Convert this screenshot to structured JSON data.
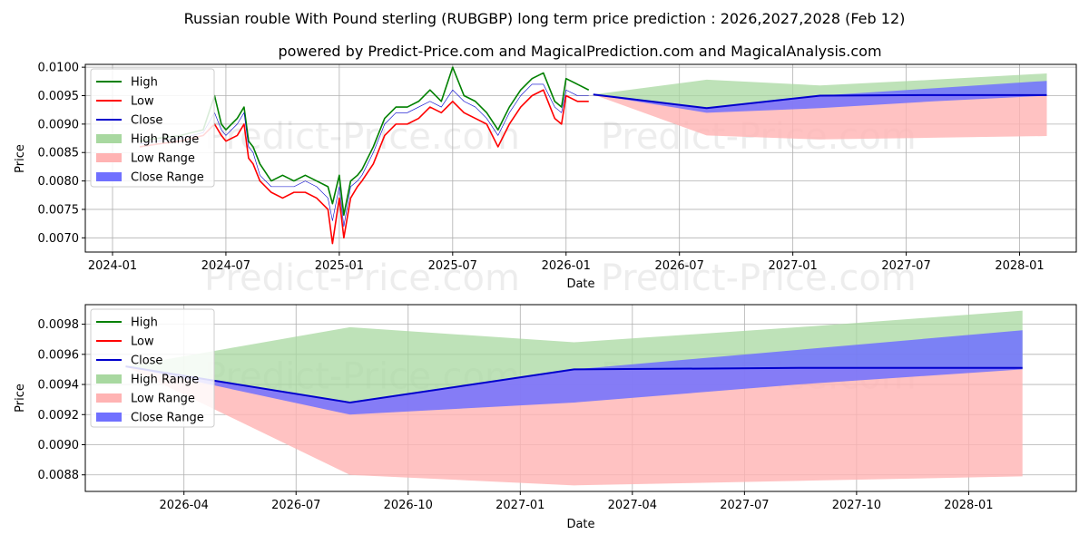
{
  "title": "Russian rouble With Pound sterling (RUBGBP) long term price prediction : 2026,2027,2028 (Feb 12)",
  "subtitle": "powered by Predict-Price.com and MagicalPrediction.com and MagicalAnalysis.com",
  "watermark": "Predict-Price.com",
  "colors": {
    "high": "#008000",
    "low": "#ff0000",
    "close": "#0000cc",
    "high_range": "#a8d8a0",
    "low_range": "#ffb3b3",
    "close_range": "#7070ff",
    "grid": "#b0b0b0"
  },
  "legend": [
    "High",
    "Low",
    "Close",
    "High Range",
    "Low Range",
    "Close Range"
  ],
  "chart_data": [
    {
      "type": "line",
      "name": "full-history",
      "xlabel": "Date",
      "ylabel": "Price",
      "xlim": [
        2023.88,
        2028.25
      ],
      "ylim": [
        0.00675,
        0.01005
      ],
      "x_ticks": [
        {
          "label": "2024-01",
          "x": 2024.0
        },
        {
          "label": "2024-07",
          "x": 2024.5
        },
        {
          "label": "2025-01",
          "x": 2025.0
        },
        {
          "label": "2025-07",
          "x": 2025.5
        },
        {
          "label": "2026-01",
          "x": 2026.0
        },
        {
          "label": "2026-07",
          "x": 2026.5
        },
        {
          "label": "2027-01",
          "x": 2027.0
        },
        {
          "label": "2027-07",
          "x": 2027.5
        },
        {
          "label": "2028-01",
          "x": 2028.0
        }
      ],
      "y_ticks": [
        {
          "label": "0.0070",
          "y": 0.007
        },
        {
          "label": "0.0075",
          "y": 0.0075
        },
        {
          "label": "0.0080",
          "y": 0.008
        },
        {
          "label": "0.0085",
          "y": 0.0085
        },
        {
          "label": "0.0090",
          "y": 0.009
        },
        {
          "label": "0.0095",
          "y": 0.0095
        },
        {
          "label": "0.0100",
          "y": 0.01
        }
      ],
      "history": {
        "x": [
          2024.12,
          2024.2,
          2024.3,
          2024.4,
          2024.45,
          2024.48,
          2024.5,
          2024.55,
          2024.58,
          2024.6,
          2024.62,
          2024.65,
          2024.7,
          2024.75,
          2024.8,
          2024.85,
          2024.9,
          2024.95,
          2024.97,
          2025.0,
          2025.02,
          2025.05,
          2025.08,
          2025.1,
          2025.15,
          2025.2,
          2025.25,
          2025.3,
          2025.35,
          2025.4,
          2025.45,
          2025.5,
          2025.55,
          2025.6,
          2025.65,
          2025.7,
          2025.75,
          2025.8,
          2025.85,
          2025.9,
          2025.95,
          2025.98,
          2026.0,
          2026.05,
          2026.1
        ],
        "high": [
          0.0087,
          0.00875,
          0.0088,
          0.0089,
          0.0095,
          0.009,
          0.0089,
          0.0091,
          0.0093,
          0.0087,
          0.0086,
          0.0083,
          0.008,
          0.0081,
          0.008,
          0.0081,
          0.008,
          0.0079,
          0.0076,
          0.0081,
          0.0074,
          0.008,
          0.0081,
          0.0082,
          0.0086,
          0.0091,
          0.0093,
          0.0093,
          0.0094,
          0.0096,
          0.0094,
          0.01,
          0.0095,
          0.0094,
          0.0092,
          0.0089,
          0.0093,
          0.0096,
          0.0098,
          0.0099,
          0.0094,
          0.0093,
          0.0098,
          0.0097,
          0.0096
        ],
        "low": [
          0.0086,
          0.00865,
          0.0087,
          0.0088,
          0.009,
          0.0088,
          0.0087,
          0.0088,
          0.009,
          0.0084,
          0.0083,
          0.008,
          0.0078,
          0.0077,
          0.0078,
          0.0078,
          0.0077,
          0.0075,
          0.0069,
          0.0077,
          0.007,
          0.0077,
          0.0079,
          0.008,
          0.0083,
          0.0088,
          0.009,
          0.009,
          0.0091,
          0.0093,
          0.0092,
          0.0094,
          0.0092,
          0.0091,
          0.009,
          0.0086,
          0.009,
          0.0093,
          0.0095,
          0.0096,
          0.0091,
          0.009,
          0.0095,
          0.0094,
          0.0094
        ],
        "close": [
          0.00865,
          0.0087,
          0.00875,
          0.00885,
          0.0092,
          0.0089,
          0.0088,
          0.009,
          0.0092,
          0.0086,
          0.0085,
          0.0081,
          0.0079,
          0.0079,
          0.0079,
          0.008,
          0.0079,
          0.0077,
          0.0073,
          0.0079,
          0.0072,
          0.0079,
          0.008,
          0.0081,
          0.0085,
          0.009,
          0.0092,
          0.0092,
          0.0093,
          0.0094,
          0.0093,
          0.0096,
          0.0094,
          0.0093,
          0.0091,
          0.0088,
          0.0092,
          0.0095,
          0.0097,
          0.0097,
          0.0093,
          0.0092,
          0.0096,
          0.0095,
          0.0095
        ]
      },
      "forecast": {
        "x": [
          2026.12,
          2026.62,
          2027.12,
          2027.62,
          2028.12
        ],
        "close": [
          0.00952,
          0.00928,
          0.0095,
          0.00951,
          0.00951
        ],
        "high_range_top": [
          0.00952,
          0.00978,
          0.00968,
          0.00978,
          0.00989
        ],
        "close_range_top": [
          0.00952,
          0.00928,
          0.0095,
          0.00963,
          0.00976
        ],
        "close_range_bottom": [
          0.00952,
          0.0092,
          0.00928,
          0.0094,
          0.0095
        ],
        "low_range_bottom": [
          0.00952,
          0.0088,
          0.00873,
          0.00876,
          0.00879
        ]
      }
    },
    {
      "type": "line",
      "name": "forecast-zoom",
      "xlabel": "Date",
      "ylabel": "Price",
      "xlim": [
        2026.03,
        2028.24
      ],
      "ylim": [
        0.00869,
        0.00993
      ],
      "x_ticks": [
        {
          "label": "2026-04",
          "x": 2026.25
        },
        {
          "label": "2026-07",
          "x": 2026.5
        },
        {
          "label": "2026-10",
          "x": 2026.75
        },
        {
          "label": "2027-01",
          "x": 2027.0
        },
        {
          "label": "2027-04",
          "x": 2027.25
        },
        {
          "label": "2027-07",
          "x": 2027.5
        },
        {
          "label": "2027-10",
          "x": 2027.75
        },
        {
          "label": "2028-01",
          "x": 2028.0
        }
      ],
      "y_ticks": [
        {
          "label": "0.0088",
          "y": 0.0088
        },
        {
          "label": "0.0090",
          "y": 0.009
        },
        {
          "label": "0.0092",
          "y": 0.0092
        },
        {
          "label": "0.0094",
          "y": 0.0094
        },
        {
          "label": "0.0096",
          "y": 0.0096
        },
        {
          "label": "0.0098",
          "y": 0.0098
        }
      ],
      "forecast": {
        "x": [
          2026.12,
          2026.62,
          2027.12,
          2027.62,
          2028.12
        ],
        "close": [
          0.00952,
          0.00928,
          0.0095,
          0.00951,
          0.00951
        ],
        "high_range_top": [
          0.00952,
          0.00978,
          0.00968,
          0.00978,
          0.00989
        ],
        "close_range_top": [
          0.00952,
          0.00928,
          0.0095,
          0.00963,
          0.00976
        ],
        "close_range_bottom": [
          0.00952,
          0.0092,
          0.00928,
          0.0094,
          0.0095
        ],
        "low_range_bottom": [
          0.00952,
          0.0088,
          0.00873,
          0.00876,
          0.00879
        ]
      }
    }
  ]
}
